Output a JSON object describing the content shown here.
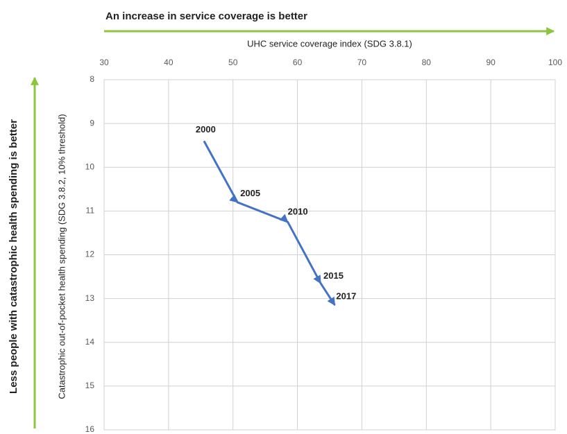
{
  "chart_data": {
    "type": "line",
    "annotations": [
      "An increase in service coverage is better",
      "Less people with catastrophic health spending is better"
    ],
    "xlabel": "UHC service coverage index (SDG 3.8.1)",
    "ylabel": "Catastrophic out-of-pocket health spending (SDG 3.8.2, 10% threshold)",
    "x": [
      45.5,
      50.7,
      58.5,
      63.6,
      65.8
    ],
    "values": [
      9.4,
      10.8,
      11.25,
      12.65,
      13.15
    ],
    "point_labels": [
      "2000",
      "2005",
      "2010",
      "2015",
      "2017"
    ],
    "color": "#4472c4",
    "annotation_color": "#8cc63f",
    "xlim": [
      30,
      100
    ],
    "xticks": [
      30,
      40,
      50,
      60,
      70,
      80,
      90,
      100
    ],
    "ylim": [
      8,
      16
    ],
    "yticks": [
      8,
      9,
      10,
      11,
      12,
      13,
      14,
      15,
      16
    ],
    "y_inverted": true,
    "x_axis_top": true,
    "grid": true
  }
}
